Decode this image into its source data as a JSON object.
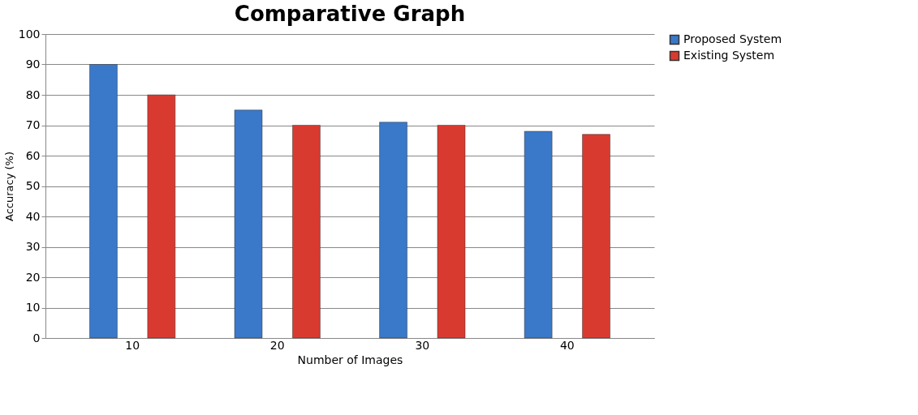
{
  "chart_data": {
    "type": "bar",
    "title": "Comparative Graph",
    "xlabel": "Number of Images",
    "ylabel": "Accuracy (%)",
    "categories": [
      "10",
      "20",
      "30",
      "40"
    ],
    "series": [
      {
        "name": "Proposed System",
        "color": "#3a78c9",
        "values": [
          90,
          75,
          71,
          68
        ]
      },
      {
        "name": "Existing System",
        "color": "#d93a30",
        "values": [
          80,
          70,
          70,
          67
        ]
      }
    ],
    "ylim": [
      0,
      100
    ],
    "yticks": [
      0,
      10,
      20,
      30,
      40,
      50,
      60,
      70,
      80,
      90,
      100
    ],
    "grid": "y",
    "legend": "right"
  }
}
